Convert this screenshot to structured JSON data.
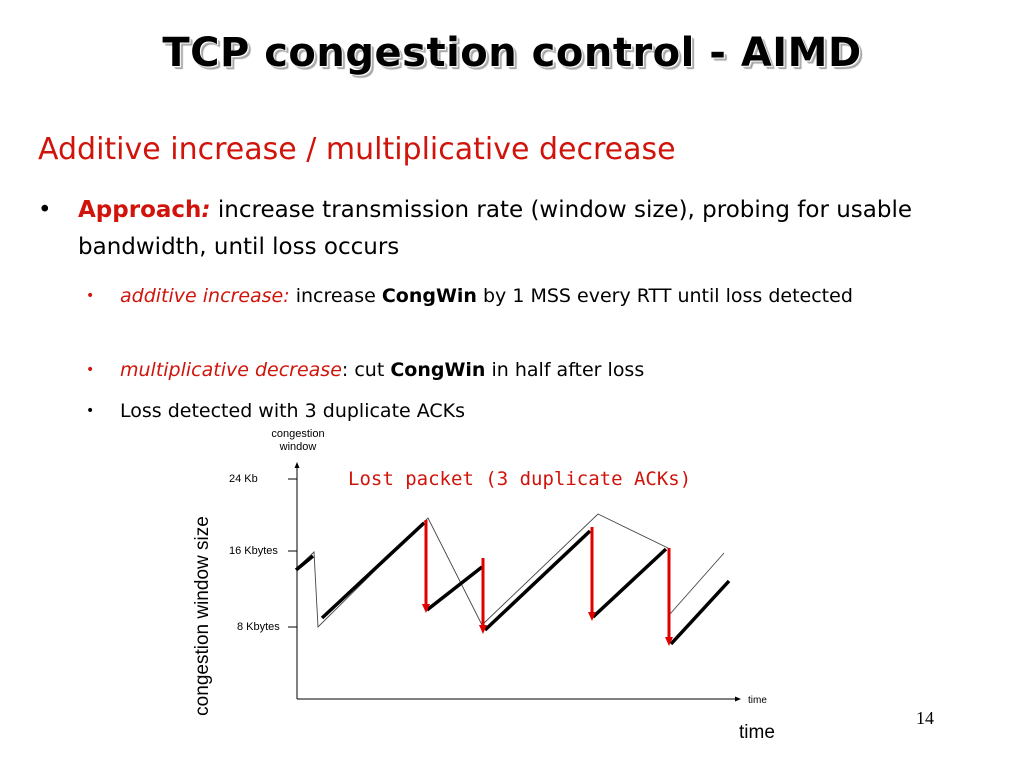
{
  "slide": {
    "title": "TCP congestion control - AIMD",
    "subheading": "Additive increase / multiplicative decrease",
    "bullet": {
      "marker": "•",
      "label": "Approach",
      "colon": ":",
      "text": " increase transmission rate (window size), probing for usable bandwidth, until loss occurs"
    },
    "sub_bullets": [
      {
        "marker": "•",
        "label": "additive increase:",
        "text1": " increase  ",
        "bold": "CongWin",
        "text2": " by 1 MSS every RTT until loss detected"
      },
      {
        "marker": "•",
        "label": "multiplicative decrease",
        "text1": ": cut ",
        "bold": "CongWin",
        "text2": " in half after loss"
      },
      {
        "marker": "•",
        "text": "Loss detected with 3 duplicate ACKs"
      }
    ],
    "page_number": "14"
  },
  "diagram": {
    "top_axis_label": "congestion\nwindow",
    "y_ticks": [
      "24 Kb",
      "16 Kbytes",
      "8 Kbytes"
    ],
    "lost_packet_label": "Lost packet (3 duplicate ACKs)",
    "y_axis_title": "congestion window size",
    "x_axis_label_small": "time",
    "x_axis_label": "time",
    "colors": {
      "loss_drop": "#e00000",
      "window": "#000000",
      "label_red": "#d0140b"
    }
  }
}
